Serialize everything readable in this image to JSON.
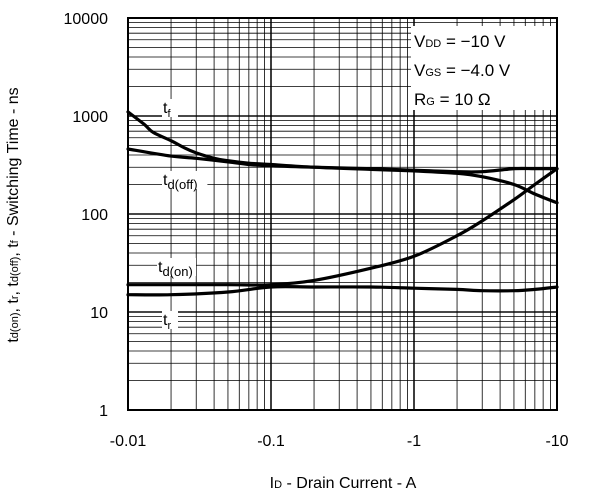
{
  "chart_data": {
    "type": "line",
    "xlabel": {
      "main": "I",
      "sub": "D",
      "rest": " - Drain Current - A"
    },
    "ylabel": [
      {
        "t": "t"
      },
      {
        "t": "d(on)",
        "sub": true
      },
      {
        "t": ", t"
      },
      {
        "t": "r",
        "sub": true
      },
      {
        "t": ", t"
      },
      {
        "t": "d(off)",
        "sub": true
      },
      {
        "t": ", t"
      },
      {
        "t": "f",
        "sub": true
      },
      {
        "t": " - Switching Time - ns"
      }
    ],
    "x_scale": "log",
    "y_scale": "log",
    "xlim": [
      -0.01,
      -10
    ],
    "ylim": [
      1,
      10000
    ],
    "x_ticks": [
      "-0.01",
      "-0.1",
      "-1",
      "-10"
    ],
    "y_ticks": [
      "1",
      "10",
      "100",
      "1000",
      "10000"
    ],
    "grid": true,
    "conditions": [
      {
        "main": "V",
        "sub": "DD",
        "rest": " = −10 V"
      },
      {
        "main": "V",
        "sub": "GS",
        "rest": " = −4.0 V"
      },
      {
        "main": "R",
        "sub": "G",
        "rest": " = 10 Ω"
      }
    ],
    "series": [
      {
        "name": "tf",
        "label": {
          "main": "t",
          "sub": "f"
        },
        "x": [
          -0.01,
          -0.013,
          -0.015,
          -0.02,
          -0.025,
          -0.03,
          -0.04,
          -0.05,
          -0.07,
          -0.1,
          -0.2,
          -0.5,
          -1,
          -2,
          -3,
          -5,
          -7,
          -10
        ],
        "y": [
          1100,
          820,
          680,
          560,
          470,
          420,
          370,
          350,
          330,
          320,
          300,
          285,
          275,
          260,
          240,
          200,
          160,
          130
        ]
      },
      {
        "name": "td(off)",
        "label": {
          "main": "t",
          "sub": "d(off)"
        },
        "x": [
          -0.01,
          -0.02,
          -0.03,
          -0.05,
          -0.07,
          -0.1,
          -0.2,
          -0.5,
          -1,
          -2,
          -3,
          -5,
          -7,
          -10
        ],
        "y": [
          460,
          390,
          370,
          340,
          320,
          310,
          300,
          290,
          280,
          270,
          270,
          290,
          290,
          290
        ]
      },
      {
        "name": "td(on)",
        "label": {
          "main": "t",
          "sub": "d(on)"
        },
        "x": [
          -0.01,
          -0.02,
          -0.05,
          -0.1,
          -0.2,
          -0.5,
          -1,
          -2,
          -3,
          -5,
          -7,
          -10
        ],
        "y": [
          19,
          19,
          19,
          19,
          21,
          28,
          37,
          60,
          85,
          140,
          200,
          290
        ]
      },
      {
        "name": "tr",
        "label": {
          "main": "t",
          "sub": "r"
        },
        "x": [
          -0.01,
          -0.02,
          -0.05,
          -0.1,
          -0.2,
          -0.5,
          -1,
          -2,
          -3,
          -5,
          -7,
          -10
        ],
        "y": [
          15,
          15,
          16,
          18,
          18,
          18,
          17.5,
          17,
          16.5,
          16.5,
          17,
          18
        ]
      }
    ]
  }
}
